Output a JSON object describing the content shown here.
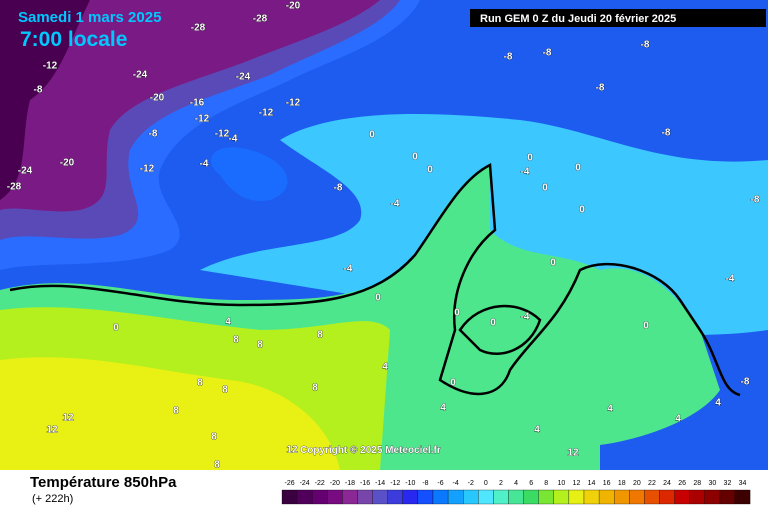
{
  "header": {
    "date": "Samedi 1 mars 2025",
    "time": "7:00 locale",
    "run": "Run GEM 0 Z du Jeudi 20 février 2025"
  },
  "map": {
    "copyright": "Copyright © 2025 Meteociel.fr",
    "contour_labels": [
      -28,
      -20,
      -28,
      -12,
      -8,
      -24,
      -24,
      -20,
      -16,
      -12,
      -12,
      -12,
      -8,
      -12,
      -4,
      -4,
      -12,
      -20,
      -24,
      -28,
      0,
      0,
      0,
      -8,
      -4,
      -4,
      0,
      -8,
      -8,
      -8,
      -8,
      -8,
      -8,
      0,
      -4,
      0,
      0,
      0,
      0,
      -4,
      0,
      4,
      8,
      8,
      8,
      4,
      8,
      8,
      8,
      8,
      12,
      12,
      8,
      8,
      4,
      4,
      4,
      4,
      4,
      -4,
      0,
      0,
      0,
      -8,
      0,
      12,
      12
    ]
  },
  "footer": {
    "title": "Température 850hPa",
    "lead": "(+ 222h)"
  },
  "colorbar": {
    "ticks": [
      -26,
      -24,
      -22,
      -20,
      -18,
      -16,
      -14,
      -12,
      -10,
      -8,
      -6,
      -4,
      -2,
      0,
      2,
      4,
      6,
      8,
      10,
      12,
      14,
      16,
      18,
      20,
      22,
      24,
      26,
      28,
      30,
      32,
      34
    ],
    "colors": [
      "#3a0040",
      "#50005a",
      "#640070",
      "#780a82",
      "#8c2896",
      "#7846aa",
      "#5a50c8",
      "#3c3cdc",
      "#2828f0",
      "#1450ff",
      "#0a78ff",
      "#14a0ff",
      "#28c8ff",
      "#50e6ff",
      "#50f0c8",
      "#46e696",
      "#3cdc64",
      "#78e632",
      "#b4f01e",
      "#e6f014",
      "#f0d20a",
      "#f0b400",
      "#f09600",
      "#f07800",
      "#e65000",
      "#dc2800",
      "#c80000",
      "#aa0000",
      "#8c0000",
      "#640000",
      "#3c0000"
    ]
  }
}
